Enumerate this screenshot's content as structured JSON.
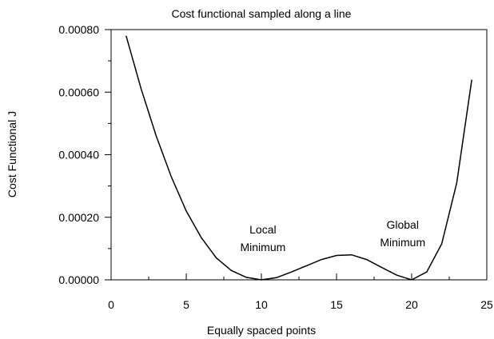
{
  "chart_data": {
    "type": "line",
    "title": "Cost functional sampled along a line",
    "xlabel": "Equally spaced points",
    "ylabel": "Cost Functional J",
    "xlim": [
      0,
      25
    ],
    "ylim": [
      0,
      0.0008
    ],
    "xticks": [
      0,
      5,
      10,
      15,
      20,
      25
    ],
    "xtick_labels": [
      "0",
      "5",
      "10",
      "15",
      "20",
      "25"
    ],
    "yticks": [
      0,
      0.0002,
      0.0004,
      0.0006,
      0.0008
    ],
    "ytick_labels": [
      "0.00000",
      "0.00020",
      "0.00040",
      "0.00060",
      "0.00080"
    ],
    "grid": false,
    "legend": "none",
    "line_color": "#000000",
    "series": [
      {
        "x": [
          1,
          2,
          3,
          4,
          5,
          6,
          7,
          8,
          9,
          10,
          11,
          12,
          13,
          14,
          15,
          16,
          17,
          18,
          19,
          20,
          21,
          22,
          23,
          24
        ],
        "y": [
          0.00078,
          0.00061,
          0.00046,
          0.00033,
          0.00022,
          0.000135,
          7e-05,
          3e-05,
          8e-06,
          0.0,
          7e-06,
          2.5e-05,
          4.5e-05,
          6.5e-05,
          7.8e-05,
          8e-05,
          6.5e-05,
          4e-05,
          1.5e-05,
          0.0,
          2.5e-05,
          0.000115,
          0.00031,
          0.00064
        ]
      }
    ],
    "annotations": [
      {
        "lines": [
          "Local",
          "Minimum"
        ],
        "x": 10.1,
        "y": 0.000148
      },
      {
        "lines": [
          "Global",
          "Minimum"
        ],
        "x": 19.4,
        "y": 0.000163
      }
    ]
  }
}
